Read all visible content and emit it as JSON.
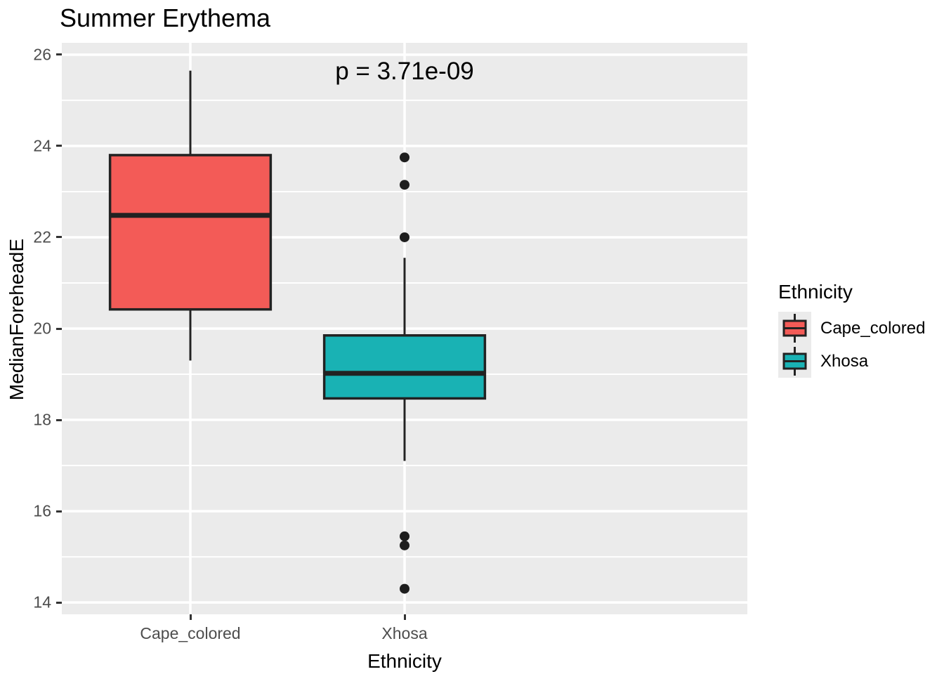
{
  "title": "Summer Erythema",
  "legend": {
    "title": "Ethnicity",
    "position": "right"
  },
  "chart_data": {
    "type": "boxplot",
    "title": "Summer Erythema",
    "xlabel": "Ethnicity",
    "ylabel": "MedianForeheadE",
    "annotation": "p = 3.71e-09",
    "ylim": [
      13.74,
      26.26
    ],
    "yticks_major": [
      14,
      16,
      18,
      20,
      22,
      24,
      26
    ],
    "yticks_minor": [
      15,
      17,
      19,
      21,
      23,
      25
    ],
    "categories": [
      "Cape_colored",
      "Xhosa"
    ],
    "grid": true,
    "legend_position": "right",
    "series": [
      {
        "name": "Cape_colored",
        "color": "#F35B57",
        "whisker_low": 19.3,
        "q1": 20.42,
        "median": 22.48,
        "q3": 23.8,
        "whisker_high": 25.65,
        "outliers": []
      },
      {
        "name": "Xhosa",
        "color": "#19B2B4",
        "whisker_low": 17.1,
        "q1": 18.47,
        "median": 19.02,
        "q3": 19.85,
        "whisker_high": 21.55,
        "outliers": [
          23.75,
          23.15,
          22.0,
          15.45,
          15.25,
          14.3
        ]
      }
    ],
    "style": {
      "panel_bg": "#EBEBEB",
      "grid_color": "#FFFFFF",
      "box_outline": "#222222",
      "outlier_color": "#1E1E1E",
      "tick_mark_color": "#333333",
      "axis_text_color": "#4D4D4D"
    }
  }
}
